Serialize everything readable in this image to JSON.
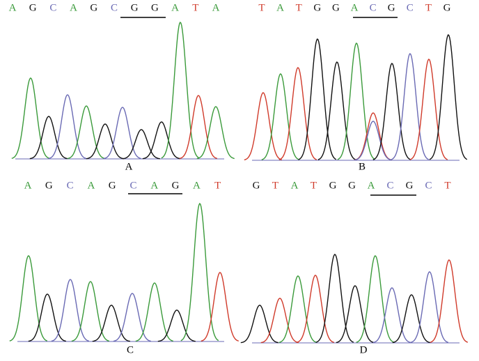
{
  "base_colors": {
    "A": "#3a9a3a",
    "G": "#111111",
    "C": "#6a6ab4",
    "T": "#d03a2a"
  },
  "panels": [
    {
      "label": "A",
      "bases": [
        "A",
        "G",
        "C",
        "A",
        "G",
        "C",
        "G",
        "G",
        "A",
        "T",
        "A"
      ]
    },
    {
      "label": "B",
      "bases": [
        "T",
        "A",
        "T",
        "G",
        "G",
        "A",
        "C",
        "G",
        "C",
        "T",
        "G"
      ]
    },
    {
      "label": "C",
      "bases": [
        "A",
        "G",
        "C",
        "A",
        "G",
        "C",
        "A",
        "G",
        "A",
        "T"
      ]
    },
    {
      "label": "D",
      "bases": [
        "G",
        "T",
        "A",
        "T",
        "G",
        "G",
        "A",
        "C",
        "G",
        "C",
        "T"
      ]
    }
  ]
}
